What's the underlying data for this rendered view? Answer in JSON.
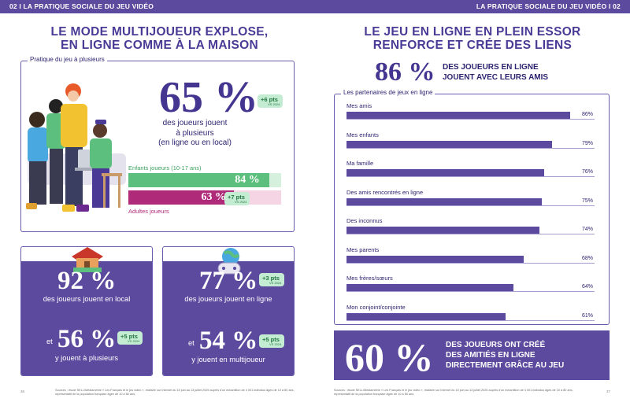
{
  "header": {
    "left": "02 I LA PRATIQUE SOCIALE DU JEU VIDÉO",
    "right": "LA PRATIQUE SOCIALE DU JEU VIDÉO I 02"
  },
  "left": {
    "title_line1": "LE MODE MULTIJOUEUR EXPLOSE,",
    "title_line2": "EN LIGNE COMME À LA MAISON",
    "panel_label": "Pratique du jeu à plusieurs",
    "stat_main": "65 %",
    "stat_badge": "+6 pts",
    "stat_badge_sub": "VS 2024",
    "stat_desc_1": "des joueurs jouent",
    "stat_desc_2": "à plusieurs",
    "stat_desc_3": "(en ligne ou en local)",
    "kids_label": "Enfants joueurs (10-17 ans)",
    "kids_value": "84 %",
    "kids_pct": 84,
    "adults_label": "Adultes joueurs",
    "adults_value": "63 %",
    "adults_pct": 63,
    "adults_badge": "+7 pts",
    "adults_badge_sub": "VS 2024",
    "card1": {
      "pct1": "92 %",
      "text1": "des joueurs jouent en local",
      "et": "et",
      "pct2": "56 %",
      "badge": "+5 pts",
      "badge_sub": "VS 2024",
      "text2": "y jouent à plusieurs"
    },
    "card2": {
      "pct1": "77 %",
      "badge1": "+3 pts",
      "badge1_sub": "VS 2024",
      "text1": "des joueurs jouent en ligne",
      "et": "et",
      "pct2": "54 %",
      "badge2": "+5 pts",
      "badge2_sub": "VS 2024",
      "text2": "y jouent en multijoueur"
    },
    "source": "Sources : étude SELL/Médiamétrie « Les Français et le jeu vidéo », réalisée sur Internet du 15 juin au 13 juillet 2025 auprès d'un échantillon de 4 001 individus âgés de 10 à 80 ans, représentatif de la population française âgée de 10 à 80 ans.",
    "page": "36"
  },
  "right": {
    "title_line1": "LE JEU EN LIGNE EN PLEIN ESSOR",
    "title_line2": "RENFORCE ET CRÉE DES LIENS",
    "stat86": "86 %",
    "stat86_text1": "DES JOUEURS EN LIGNE",
    "stat86_text2": "JOUENT AVEC LEURS AMIS",
    "panel_label": "Les partenaires de jeux en ligne",
    "rows": [
      {
        "label": "Mes amis",
        "value": "86%",
        "pct": 86
      },
      {
        "label": "Mes enfants",
        "value": "79%",
        "pct": 79
      },
      {
        "label": "Ma famille",
        "value": "76%",
        "pct": 76
      },
      {
        "label": "Des amis rencontrés en ligne",
        "value": "75%",
        "pct": 75
      },
      {
        "label": "Des inconnus",
        "value": "74%",
        "pct": 74
      },
      {
        "label": "Mes parents",
        "value": "68%",
        "pct": 68
      },
      {
        "label": "Mes frères/sœurs",
        "value": "64%",
        "pct": 64
      },
      {
        "label": "Mon conjoint/conjointe",
        "value": "61%",
        "pct": 61
      }
    ],
    "stat60": "60 %",
    "stat60_text1": "DES JOUEURS ONT CRÉÉ",
    "stat60_text2": "DES AMITIÉS EN LIGNE",
    "stat60_text3": "DIRECTEMENT GRÂCE AU JEU",
    "source": "Sources : étude SELL/Médiamétrie « Les Français et le jeu vidéo », réalisée sur Internet du 15 juin au 13 juillet 2025 auprès d'un échantillon de 4 001 individus âgés de 10 à 80 ans, représentatif de la population française âgée de 10 à 80 ans.",
    "page": "37"
  },
  "colors": {
    "purple": "#5b4a9e",
    "green": "#5cbf7d",
    "magenta": "#b02a7a"
  }
}
